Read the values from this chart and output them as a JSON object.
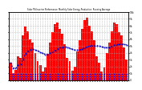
{
  "title": "Solar PV/Inverter Performance  Monthly Solar Energy Production  Running Average",
  "bar_values": [
    2.5,
    1.0,
    1.5,
    3.5,
    3.2,
    6.5,
    7.8,
    7.2,
    6.0,
    5.5,
    4.0,
    2.8,
    2.2,
    1.2,
    1.8,
    3.8,
    5.5,
    7.0,
    8.2,
    8.5,
    7.5,
    6.8,
    5.2,
    3.2,
    2.8,
    1.4,
    2.0,
    4.2,
    5.8,
    7.5,
    8.8,
    9.2,
    8.0,
    7.2,
    5.8,
    3.5,
    2.5,
    1.2,
    1.8,
    4.0,
    5.5,
    7.2,
    8.5,
    8.2,
    7.0,
    6.5,
    4.8,
    3.0
  ],
  "running_avg": [
    2.5,
    1.75,
    1.67,
    2.13,
    2.34,
    3.04,
    3.79,
    4.21,
    4.42,
    4.5,
    4.39,
    4.26,
    4.09,
    3.91,
    3.78,
    3.77,
    3.9,
    4.07,
    4.31,
    4.58,
    4.73,
    4.84,
    4.85,
    4.78,
    4.68,
    4.53,
    4.41,
    4.38,
    4.42,
    4.54,
    4.69,
    4.87,
    4.97,
    5.05,
    5.08,
    5.04,
    4.97,
    4.86,
    4.76,
    4.73,
    4.8,
    4.94,
    5.09,
    5.19,
    5.23,
    5.27,
    5.24,
    5.17
  ],
  "bar_color": "#ff0000",
  "line_color": "#0000cc",
  "marker_color": "#0000ff",
  "bg_color": "#ffffff",
  "grid_color": "#aaaaaa",
  "ylim": [
    0,
    10
  ],
  "ytick_vals": [
    0,
    1,
    2,
    3,
    4,
    5,
    6,
    7,
    8,
    9,
    10
  ],
  "ytick_labels_right": [
    "0",
    "1k",
    "2k",
    "3k",
    "4k",
    "5k",
    "6k",
    "7k",
    "8k",
    "9k",
    "10k"
  ],
  "n_bars": 48
}
